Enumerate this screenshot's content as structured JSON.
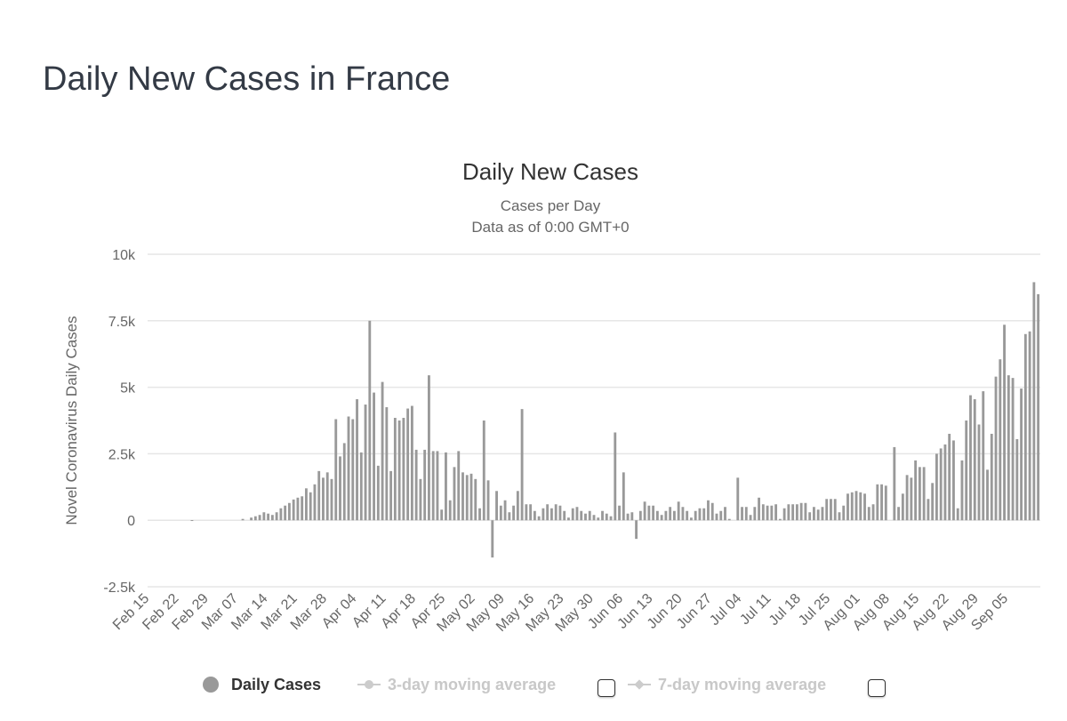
{
  "page": {
    "title": "Daily New Cases in France"
  },
  "colors": {
    "bar": "#999999",
    "grid": "#e6e6e6",
    "text": "#666666",
    "title": "#333333",
    "inactive": "#cccccc"
  },
  "legend": {
    "daily_cases": "Daily Cases",
    "ma3": "3-day moving average",
    "ma7": "7-day moving average"
  },
  "chart_data": {
    "type": "bar",
    "title": "Daily New Cases",
    "subtitle_1": "Cases per Day",
    "subtitle_2": "Data as of 0:00 GMT+0",
    "ylabel": "Novel Coronavirus Daily Cases",
    "ylim": [
      -2500,
      10000
    ],
    "yticks": [
      -2500,
      0,
      2500,
      5000,
      7500,
      10000
    ],
    "ytick_labels": [
      "-2.5k",
      "0",
      "2.5k",
      "5k",
      "7.5k",
      "10k"
    ],
    "grid": true,
    "start_date": "Feb 15",
    "xtick_labels": [
      "Feb 15",
      "Feb 22",
      "Feb 29",
      "Mar 07",
      "Mar 14",
      "Mar 21",
      "Mar 28",
      "Apr 04",
      "Apr 11",
      "Apr 18",
      "Apr 25",
      "May 02",
      "May 09",
      "May 16",
      "May 23",
      "May 30",
      "Jun 06",
      "Jun 13",
      "Jun 20",
      "Jun 27",
      "Jul 04",
      "Jul 11",
      "Jul 18",
      "Jul 25",
      "Aug 01",
      "Aug 08",
      "Aug 15",
      "Aug 22",
      "Aug 29",
      "Sep 05"
    ],
    "series": [
      {
        "name": "Daily Cases",
        "values": [
          0,
          0,
          0,
          0,
          0,
          0,
          0,
          0,
          0,
          0,
          6,
          0,
          0,
          0,
          0,
          0,
          0,
          0,
          0,
          0,
          0,
          0,
          50,
          0,
          100,
          150,
          200,
          300,
          250,
          200,
          300,
          450,
          550,
          650,
          780,
          850,
          900,
          1200,
          1050,
          1350,
          1850,
          1600,
          1800,
          1550,
          3800,
          2400,
          2900,
          3900,
          3800,
          4550,
          2550,
          4350,
          7500,
          4800,
          2050,
          5200,
          4250,
          1850,
          3850,
          3750,
          3850,
          4200,
          4300,
          2650,
          1550,
          2650,
          5450,
          2600,
          2600,
          400,
          2550,
          750,
          2000,
          2600,
          1800,
          1700,
          1750,
          1550,
          450,
          3750,
          1500,
          -1400,
          1100,
          550,
          750,
          300,
          550,
          1100,
          4180,
          600,
          600,
          350,
          150,
          450,
          600,
          450,
          600,
          550,
          350,
          100,
          450,
          500,
          350,
          250,
          350,
          200,
          100,
          350,
          250,
          150,
          3300,
          550,
          1800,
          250,
          300,
          -700,
          350,
          700,
          550,
          550,
          350,
          200,
          350,
          500,
          350,
          700,
          500,
          350,
          100,
          350,
          450,
          450,
          750,
          650,
          250,
          350,
          500,
          50,
          0,
          1600,
          500,
          500,
          200,
          500,
          850,
          600,
          550,
          550,
          600,
          50,
          450,
          600,
          600,
          600,
          650,
          650,
          300,
          500,
          400,
          500,
          800,
          800,
          800,
          300,
          550,
          1000,
          1050,
          1100,
          1050,
          1000,
          500,
          600,
          1350,
          1350,
          1300,
          0,
          2750,
          500,
          1000,
          1700,
          1600,
          2250,
          2000,
          2000,
          800,
          1400,
          2500,
          2700,
          2850,
          3250,
          3000,
          450,
          2250,
          3750,
          4700,
          4550,
          3600,
          4850,
          1900,
          3250,
          5400,
          6050,
          7350,
          5450,
          5350,
          3050,
          4950,
          7000,
          7100,
          8950,
          8500
        ]
      }
    ]
  }
}
